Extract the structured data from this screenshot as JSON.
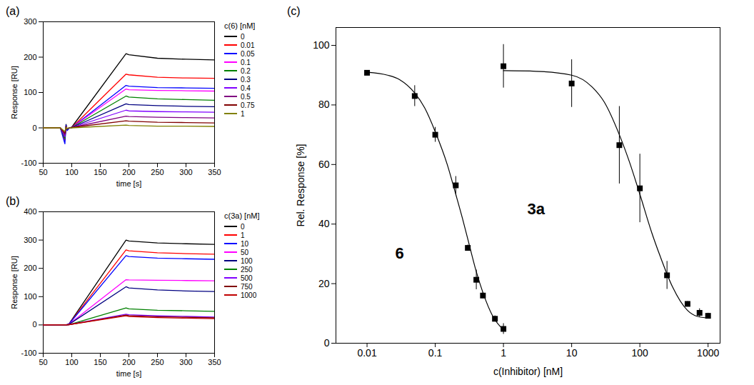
{
  "chart_data": [
    {
      "type": "line",
      "title": "(a)",
      "x_label": "time [s]",
      "y_label": "Response [RU]",
      "legend": "right",
      "legend_title": "c(6) [nM]",
      "xlim": [
        50,
        350
      ],
      "xticks": [
        50,
        100,
        150,
        200,
        250,
        300,
        350
      ],
      "ylim": [
        -100,
        300
      ],
      "yticks": [
        -100,
        0,
        100,
        200,
        300
      ],
      "x": [
        50,
        80,
        88,
        90,
        92,
        96,
        100,
        195,
        200,
        250,
        300,
        350
      ],
      "series": [
        {
          "name": "0",
          "color": "#000000",
          "values": [
            0,
            0,
            -30,
            10,
            -5,
            0,
            2,
            210,
            207,
            197,
            194,
            192
          ]
        },
        {
          "name": "0.01",
          "color": "#ff0000",
          "values": [
            0,
            0,
            -35,
            5,
            -5,
            0,
            1,
            152,
            150,
            143,
            141,
            140
          ]
        },
        {
          "name": "0.05",
          "color": "#0000ff",
          "values": [
            0,
            0,
            -45,
            8,
            -8,
            0,
            1,
            120,
            118,
            114,
            113,
            112
          ]
        },
        {
          "name": "0.1",
          "color": "#ff00ff",
          "values": [
            0,
            0,
            -25,
            5,
            -3,
            0,
            1,
            110,
            108,
            106,
            105,
            104
          ]
        },
        {
          "name": "0.2",
          "color": "#008000",
          "values": [
            0,
            0,
            -30,
            5,
            -4,
            0,
            1,
            90,
            87,
            82,
            80,
            78
          ]
        },
        {
          "name": "0.3",
          "color": "#000080",
          "values": [
            0,
            0,
            -20,
            4,
            -3,
            0,
            1,
            68,
            66,
            63,
            61,
            60
          ]
        },
        {
          "name": "0.4",
          "color": "#8000ff",
          "values": [
            0,
            0,
            -25,
            4,
            -3,
            0,
            1,
            50,
            48,
            46,
            45,
            44
          ]
        },
        {
          "name": "0.5",
          "color": "#800080",
          "values": [
            0,
            0,
            -20,
            3,
            -2,
            0,
            1,
            33,
            32,
            30,
            29,
            28
          ]
        },
        {
          "name": "0.75",
          "color": "#800000",
          "values": [
            0,
            0,
            -15,
            3,
            -2,
            0,
            1,
            20,
            19,
            16,
            15,
            14
          ]
        },
        {
          "name": "1",
          "color": "#808000",
          "values": [
            0,
            0,
            -10,
            2,
            -2,
            0,
            0,
            8,
            7,
            5,
            5,
            4
          ]
        }
      ]
    },
    {
      "type": "line",
      "title": "(b)",
      "x_label": "time [s]",
      "y_label": "Response [RU]",
      "legend": "right",
      "legend_title": "c(3a) [nM]",
      "xlim": [
        50,
        350
      ],
      "xticks": [
        50,
        100,
        150,
        200,
        250,
        300,
        350
      ],
      "ylim": [
        -100,
        400
      ],
      "yticks": [
        -100,
        0,
        100,
        200,
        300,
        400
      ],
      "x": [
        50,
        90,
        95,
        195,
        200,
        250,
        300,
        350
      ],
      "series": [
        {
          "name": "0",
          "color": "#000000",
          "values": [
            0,
            0,
            3,
            300,
            297,
            290,
            287,
            285
          ]
        },
        {
          "name": "1",
          "color": "#ff0000",
          "values": [
            0,
            0,
            3,
            265,
            262,
            255,
            252,
            250
          ]
        },
        {
          "name": "10",
          "color": "#0000ff",
          "values": [
            0,
            0,
            3,
            245,
            242,
            236,
            234,
            232
          ]
        },
        {
          "name": "50",
          "color": "#ff00ff",
          "values": [
            0,
            0,
            2,
            160,
            159,
            158,
            157,
            156
          ]
        },
        {
          "name": "100",
          "color": "#000080",
          "values": [
            0,
            0,
            2,
            135,
            131,
            124,
            120,
            118
          ]
        },
        {
          "name": "250",
          "color": "#008000",
          "values": [
            0,
            0,
            1,
            60,
            57,
            52,
            50,
            48
          ]
        },
        {
          "name": "500",
          "color": "#8000ff",
          "values": [
            0,
            0,
            1,
            38,
            36,
            32,
            30,
            28
          ]
        },
        {
          "name": "750",
          "color": "#800000",
          "values": [
            0,
            0,
            1,
            35,
            33,
            29,
            27,
            25
          ]
        },
        {
          "name": "1000",
          "color": "#c00000",
          "values": [
            0,
            0,
            1,
            32,
            30,
            26,
            24,
            22
          ]
        }
      ]
    },
    {
      "type": "scatter",
      "title": "(c)",
      "x_label": "c(Inhibitor) [nM]",
      "y_label": "Rel. Response [%]",
      "log": "x",
      "xlim": [
        0.0035,
        1500
      ],
      "xticks": [
        0.01,
        0.1,
        1,
        10,
        100,
        1000
      ],
      "ylim": [
        0,
        106
      ],
      "yticks": [
        0,
        20,
        40,
        60,
        80,
        100
      ],
      "series": [
        {
          "color": "#000000",
          "marker": "square",
          "x": [
            0.01,
            0.05,
            0.1,
            0.2,
            0.3,
            0.4,
            0.5,
            0.75,
            1
          ],
          "values": [
            90.8,
            83,
            70,
            53,
            32,
            21.3,
            16,
            8.2,
            4.8
          ],
          "errors": [
            0.6,
            3.5,
            2.5,
            3,
            1,
            3.3,
            1,
            1,
            1.8
          ],
          "fit_x": [
            0.01,
            0.02,
            0.03,
            0.05,
            0.07,
            0.1,
            0.15,
            0.2,
            0.25,
            0.3,
            0.4,
            0.5,
            0.7,
            1
          ],
          "fit_values": [
            91,
            90,
            88.5,
            84,
            79,
            71,
            60,
            50,
            42,
            35,
            24,
            17,
            9,
            4.5
          ]
        },
        {
          "color": "#000000",
          "marker": "square",
          "x": [
            1,
            10,
            50,
            100,
            250,
            500,
            750,
            1000
          ],
          "values": [
            93,
            87.2,
            66.5,
            52,
            22.8,
            13.2,
            10.2,
            9.2
          ],
          "errors": [
            7.3,
            8,
            13,
            11.5,
            4.7,
            0.8,
            1.4,
            0.9
          ],
          "fit_x": [
            1,
            3,
            10,
            20,
            30,
            50,
            70,
            100,
            150,
            200,
            300,
            500,
            700,
            1000
          ],
          "fit_values": [
            91.5,
            91.3,
            90,
            86,
            81,
            70,
            61,
            50,
            37,
            29,
            19,
            11,
            9,
            8.5
          ]
        }
      ],
      "annotations": [
        {
          "text": "6",
          "x": 0.03,
          "y": 30
        },
        {
          "text": "3a",
          "x": 3,
          "y": 45
        }
      ]
    }
  ]
}
